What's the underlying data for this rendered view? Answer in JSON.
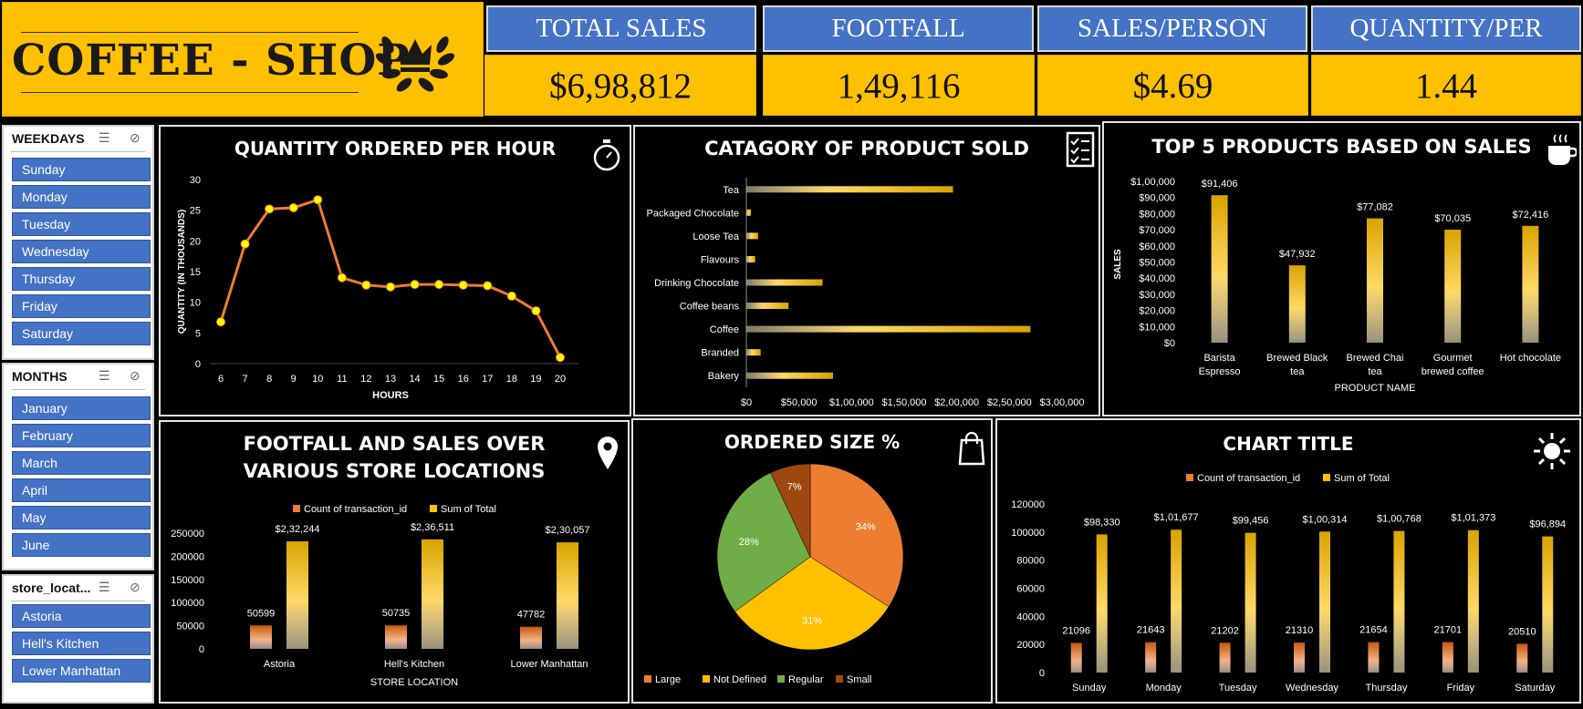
{
  "header": {
    "logo_text": "COFFEE - SHOP",
    "kpis": [
      {
        "label": "TOTAL SALES",
        "value": "$6,98,812"
      },
      {
        "label": "FOOTFALL",
        "value": "1,49,116"
      },
      {
        "label": "SALES/PERSON",
        "value": "$4.69"
      },
      {
        "label": "QUANTITY/PER",
        "value": "1.44"
      }
    ]
  },
  "slicers": {
    "weekdays": {
      "title": "WEEKDAYS",
      "items": [
        "Sunday",
        "Monday",
        "Tuesday",
        "Wednesday",
        "Thursday",
        "Friday",
        "Saturday"
      ]
    },
    "months": {
      "title": "MONTHS",
      "items": [
        "January",
        "February",
        "March",
        "April",
        "May",
        "June"
      ]
    },
    "store": {
      "title": "store_locat...",
      "items": [
        "Astoria",
        "Hell's Kitchen",
        "Lower Manhattan"
      ]
    }
  },
  "icons": [
    "crown-laurel-icon",
    "stopwatch-icon",
    "checklist-icon",
    "coffee-cup-icon",
    "map-pin-icon",
    "shopping-bag-icon",
    "sun-icon",
    "multi-select-icon",
    "clear-filter-icon"
  ],
  "colors": {
    "gold": "#ffc000",
    "blue": "#4472c4",
    "orange": "#ed7d31",
    "green": "#70ad47",
    "brown": "#9e480e"
  },
  "chart_data": [
    {
      "id": "qty_hour",
      "type": "line",
      "title": "QUANTITY ORDERED PER HOUR",
      "xlabel": "HOURS",
      "ylabel": "QUANTITY (IN THOUSANDS)",
      "x": [
        6,
        7,
        8,
        9,
        10,
        11,
        12,
        13,
        14,
        15,
        16,
        17,
        18,
        19,
        20
      ],
      "values": [
        6.8,
        19.5,
        25.2,
        25.4,
        26.7,
        14.0,
        12.8,
        12.5,
        12.9,
        12.9,
        12.8,
        12.7,
        11.0,
        8.6,
        1.0
      ],
      "ylim": [
        0,
        30
      ],
      "yticks": [
        "0",
        "5",
        "10",
        "15",
        "20",
        "25",
        "30"
      ],
      "grid": false
    },
    {
      "id": "category",
      "type": "bar",
      "orientation": "horizontal",
      "title": "CATAGORY OF PRODUCT SOLD",
      "categories": [
        "Tea",
        "Packaged Chocolate",
        "Loose Tea",
        "Flavours",
        "Drinking Chocolate",
        "Coffee beans",
        "Coffee",
        "Branded",
        "Bakery"
      ],
      "values": [
        196405,
        4408,
        11214,
        8409,
        72416,
        40085,
        269952,
        13607,
        82316
      ],
      "xlim": [
        0,
        300000
      ],
      "xticks": [
        "$0",
        "$50,000",
        "$1,00,000",
        "$1,50,000",
        "$2,00,000",
        "$2,50,000",
        "$3,00,000"
      ]
    },
    {
      "id": "top5",
      "type": "bar",
      "title": "TOP 5 PRODUCTS BASED ON SALES",
      "xlabel": "PRODUCT NAME",
      "ylabel": "SALES",
      "categories": [
        [
          "Barista",
          "Espresso"
        ],
        [
          "Brewed Black",
          "tea"
        ],
        [
          "Brewed Chai",
          "tea"
        ],
        [
          "Gourmet",
          "brewed coffee"
        ],
        [
          "Hot chocolate"
        ]
      ],
      "values": [
        91406,
        47932,
        77082,
        70035,
        72416
      ],
      "labels": [
        "$91,406",
        "$47,932",
        "$77,082",
        "$70,035",
        "$72,416"
      ],
      "ylim": [
        0,
        100000
      ],
      "yticks": [
        "$0",
        "$10,000",
        "$20,000",
        "$30,000",
        "$40,000",
        "$50,000",
        "$60,000",
        "$70,000",
        "$80,000",
        "$90,000",
        "$1,00,000"
      ]
    },
    {
      "id": "locations",
      "type": "bar",
      "title": [
        "FOOTFALL AND SALES OVER",
        "VARIOUS STORE LOCATIONS"
      ],
      "xlabel": "STORE LOCATION",
      "categories": [
        "Astoria",
        "Hell's Kitchen",
        "Lower Manhattan"
      ],
      "legend": [
        "Count of transaction_id",
        "Sum of Total"
      ],
      "series": [
        {
          "name": "Count of transaction_id",
          "values": [
            50599,
            50735,
            47782
          ],
          "labels": [
            "50599",
            "50735",
            "47782"
          ]
        },
        {
          "name": "Sum of Total",
          "values": [
            232244,
            236511,
            230057
          ],
          "labels": [
            "$2,32,244",
            "$2,36,511",
            "$2,30,057"
          ]
        }
      ],
      "ylim": [
        0,
        250000
      ],
      "yticks": [
        "0",
        "50000",
        "100000",
        "150000",
        "200000",
        "250000"
      ]
    },
    {
      "id": "size",
      "type": "pie",
      "title": "ORDERED SIZE %",
      "categories": [
        "Large",
        "Not Defined",
        "Regular",
        "Small"
      ],
      "values": [
        34,
        31,
        28,
        7
      ],
      "labels": [
        "34%",
        "31%",
        "28%",
        "7%"
      ],
      "legend_position": "bottom"
    },
    {
      "id": "weekday",
      "type": "bar",
      "title": "CHART TITLE",
      "categories": [
        "Sunday",
        "Monday",
        "Tuesday",
        "Wednesday",
        "Thursday",
        "Friday",
        "Saturday"
      ],
      "legend": [
        "Count of transaction_id",
        "Sum of Total"
      ],
      "series": [
        {
          "name": "Count of transaction_id",
          "values": [
            21096,
            21643,
            21202,
            21310,
            21654,
            21701,
            20510
          ],
          "labels": [
            "21096",
            "21643",
            "21202",
            "21310",
            "21654",
            "21701",
            "20510"
          ]
        },
        {
          "name": "Sum of Total",
          "values": [
            98330,
            101677,
            99456,
            100314,
            100768,
            101373,
            96894
          ],
          "labels": [
            "$98,330",
            "$1,01,677",
            "$99,456",
            "$1,00,314",
            "$1,00,768",
            "$1,01,373",
            "$96,894"
          ]
        }
      ],
      "ylim": [
        0,
        120000
      ],
      "yticks": [
        "0",
        "20000",
        "40000",
        "60000",
        "80000",
        "100000",
        "120000"
      ]
    }
  ]
}
